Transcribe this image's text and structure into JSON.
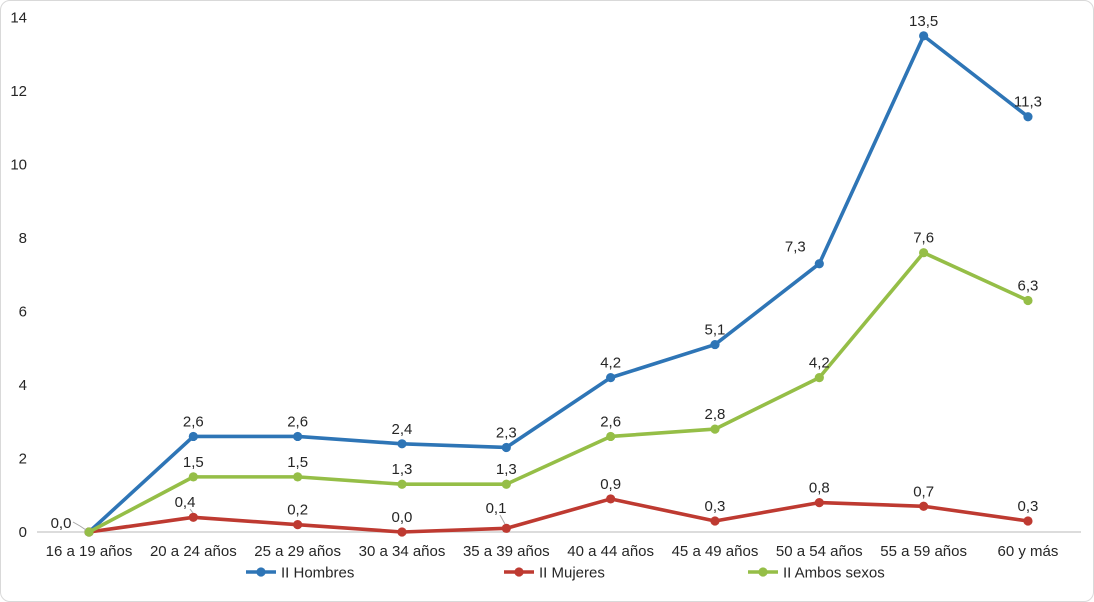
{
  "chart_data": {
    "type": "line",
    "title": "",
    "categories": [
      "16 a 19 años",
      "20 a 24 años",
      "25 a 29 años",
      "30 a 34 años",
      "35 a 39 años",
      "40 a 44 años",
      "45 a 49 años",
      "50 a 54 años",
      "55 a 59 años",
      "60 y más"
    ],
    "series": [
      {
        "name": "II Hombres",
        "color": "#2E75B6",
        "values": [
          0.0,
          2.6,
          2.6,
          2.4,
          2.3,
          4.2,
          5.1,
          7.3,
          13.5,
          11.3
        ]
      },
      {
        "name": "II Mujeres",
        "color": "#BE3A31",
        "values": [
          0.0,
          0.4,
          0.2,
          0.0,
          0.1,
          0.9,
          0.3,
          0.8,
          0.7,
          0.3
        ]
      },
      {
        "name": "II Ambos sexos",
        "color": "#95BE47",
        "values": [
          0.0,
          1.5,
          1.5,
          1.3,
          1.3,
          2.6,
          2.8,
          4.2,
          7.6,
          6.3
        ]
      }
    ],
    "y_ticks": [
      0,
      2,
      4,
      6,
      8,
      10,
      12,
      14
    ],
    "ylim": [
      0,
      14
    ],
    "grid": false,
    "data_labels": true,
    "decimal_separator": ",",
    "legend_position": "bottom",
    "axis_line_color": "#C6C6C6",
    "leader_line_color": "#A6A6A6",
    "text_color": "#262626",
    "frame_border_color": "#D9D9D9"
  }
}
